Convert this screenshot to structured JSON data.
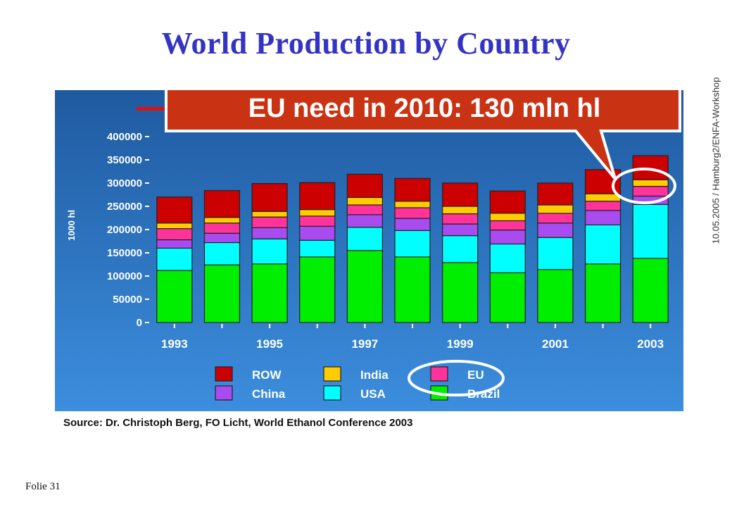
{
  "title": "World Production by Country",
  "side_text": "10.05.2005 / Hamburg2/ENFA-Workshop",
  "callout": "EU need in 2010: 130 mln hl",
  "source": "Source: Dr. Christoph Berg, FO Licht, World Ethanol Conference 2003",
  "footer": "Folie 31",
  "colors": {
    "background_top": "#1f5aa0",
    "background_bottom": "#3c8ede",
    "callout_fill": "#c93314",
    "highlight_ellipse": "#ffffff",
    "axis_text": "#ffffff"
  },
  "chart_data": {
    "type": "bar",
    "stacked": true,
    "ylabel": "1000 hl",
    "ylim": [
      0,
      400000
    ],
    "yticks": [
      0,
      50000,
      100000,
      150000,
      200000,
      250000,
      300000,
      350000,
      400000
    ],
    "ytick_labels": [
      "0",
      "50000",
      "100000",
      "150000",
      "200000",
      "250000",
      "300000",
      "350000",
      "400000"
    ],
    "categories": [
      "1993",
      "1994",
      "1995",
      "1996",
      "1997",
      "1998",
      "1999",
      "2000",
      "2001",
      "2002",
      "2003"
    ],
    "xtick_labels": [
      "1993",
      "",
      "1995",
      "",
      "1997",
      "",
      "1999",
      "",
      "2001",
      "",
      "2003"
    ],
    "legend_position": "bottom",
    "series": [
      {
        "name": "Brazil",
        "color": "#00ee00",
        "values": [
          112000,
          124000,
          126000,
          141000,
          155000,
          141000,
          129000,
          107000,
          114000,
          126000,
          138000
        ]
      },
      {
        "name": "USA",
        "color": "#00ffff",
        "values": [
          48000,
          48000,
          54000,
          36000,
          50000,
          57000,
          58000,
          62000,
          69000,
          84000,
          116000
        ]
      },
      {
        "name": "China",
        "color": "#a84cf0",
        "values": [
          18000,
          20000,
          24000,
          30000,
          27000,
          26000,
          25000,
          30000,
          31000,
          31000,
          18000
        ]
      },
      {
        "name": "EU",
        "color": "#ff3399",
        "values": [
          24000,
          22000,
          23000,
          22000,
          21000,
          23000,
          22000,
          20000,
          21000,
          20000,
          21000
        ]
      },
      {
        "name": "India",
        "color": "#ffcc00",
        "values": [
          12000,
          12000,
          12000,
          14000,
          16000,
          14000,
          16000,
          16000,
          18000,
          16000,
          14000
        ]
      },
      {
        "name": "ROW",
        "color": "#cc0000",
        "values": [
          56000,
          58000,
          60000,
          58000,
          50000,
          49000,
          50000,
          48000,
          47000,
          52000,
          52000
        ]
      }
    ],
    "legend_order": [
      "ROW",
      "India",
      "EU",
      "China",
      "USA",
      "Brazil"
    ]
  }
}
